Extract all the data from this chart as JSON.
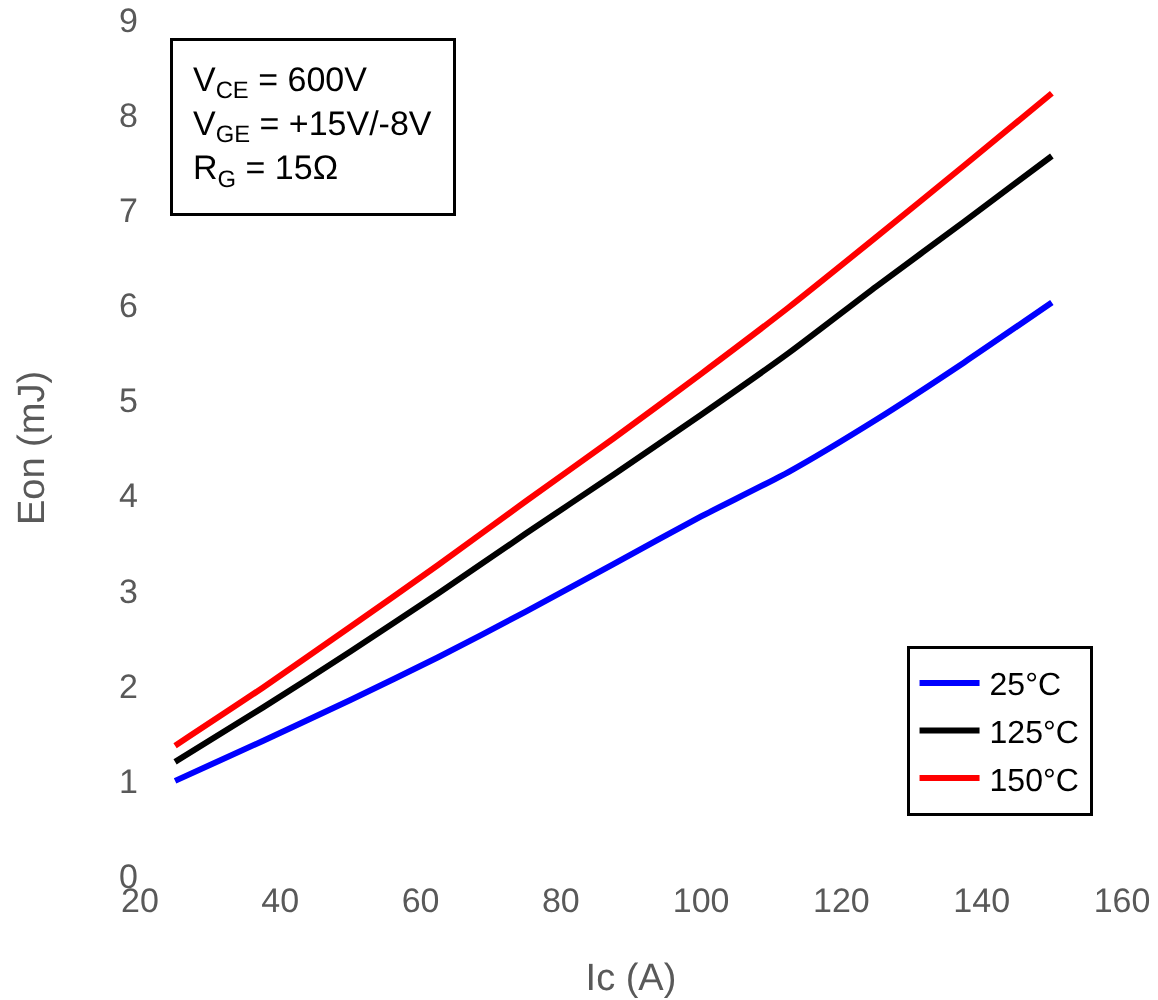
{
  "chart_data": {
    "type": "line",
    "xlabel": "Ic (A)",
    "ylabel": "Eon (mJ)",
    "annotations": [
      "V$_{CE}$ = 600V\nV$_{GE}$ = +15V/-8V\nR$_{G}$ = 15Ω"
    ],
    "x": [
      25,
      37.5,
      50,
      62.5,
      75,
      87.5,
      100,
      112.5,
      125,
      137.5,
      150
    ],
    "series": [
      {
        "name": "25°C",
        "color": "#0000ff",
        "values": [
          1.0,
          1.42,
          1.85,
          2.3,
          2.78,
          3.28,
          3.78,
          4.25,
          4.8,
          5.4,
          6.03
        ]
      },
      {
        "name": "125°C",
        "color": "#000000",
        "values": [
          1.2,
          1.77,
          2.36,
          2.97,
          3.6,
          4.22,
          4.85,
          5.5,
          6.2,
          6.88,
          7.57
        ]
      },
      {
        "name": "150°C",
        "color": "#ff0000",
        "values": [
          1.37,
          1.98,
          2.62,
          3.27,
          3.94,
          4.6,
          5.28,
          5.98,
          6.72,
          7.47,
          8.23
        ]
      }
    ],
    "xlim": [
      20,
      160
    ],
    "xticks": [
      20,
      40,
      60,
      80,
      100,
      120,
      140,
      160
    ],
    "ylim": [
      0,
      9
    ],
    "yticks": [
      0,
      1,
      2,
      3,
      4,
      5,
      6,
      7,
      8,
      9
    ],
    "grid": false,
    "legend": "bottom right",
    "marker": "none",
    "line_style": "solid"
  }
}
